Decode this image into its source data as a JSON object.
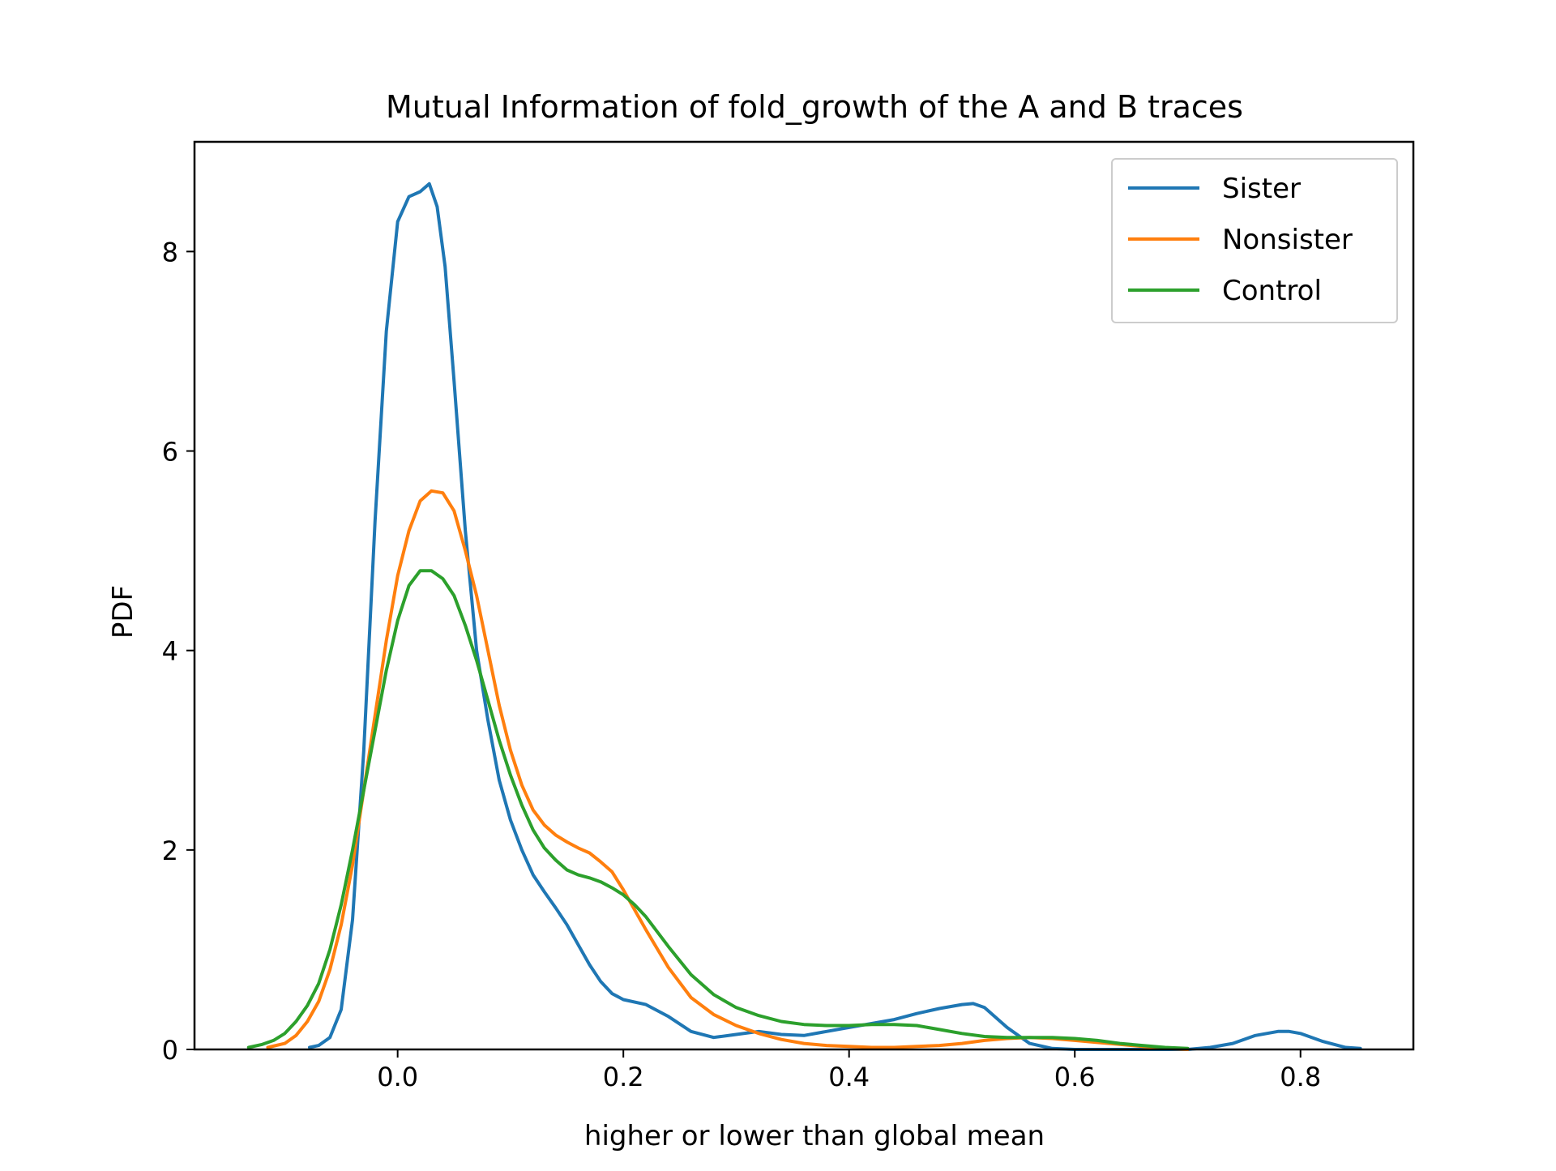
{
  "chart_data": {
    "type": "line",
    "title": "Mutual Information of fold_growth of the A and B traces",
    "xlabel": "higher or lower than global mean",
    "ylabel": "PDF",
    "xlim": [
      -0.18,
      0.9
    ],
    "ylim": [
      0,
      9.1
    ],
    "xticks": [
      0.0,
      0.2,
      0.4,
      0.6,
      0.8
    ],
    "xtick_labels": [
      "0.0",
      "0.2",
      "0.4",
      "0.6",
      "0.8"
    ],
    "yticks": [
      0,
      2,
      4,
      6,
      8
    ],
    "ytick_labels": [
      "0",
      "2",
      "4",
      "6",
      "8"
    ],
    "grid": false,
    "legend_position": "top-right",
    "series": [
      {
        "name": "Sister",
        "color": "#1f77b4",
        "x": [
          -0.078,
          -0.07,
          -0.06,
          -0.05,
          -0.04,
          -0.03,
          -0.02,
          -0.01,
          0.0,
          0.01,
          0.02,
          0.028,
          0.035,
          0.042,
          0.05,
          0.06,
          0.07,
          0.08,
          0.09,
          0.1,
          0.11,
          0.12,
          0.13,
          0.14,
          0.15,
          0.16,
          0.17,
          0.18,
          0.19,
          0.2,
          0.22,
          0.24,
          0.26,
          0.28,
          0.3,
          0.32,
          0.34,
          0.36,
          0.38,
          0.4,
          0.42,
          0.44,
          0.46,
          0.48,
          0.5,
          0.51,
          0.52,
          0.54,
          0.56,
          0.58,
          0.6,
          0.62,
          0.64,
          0.66,
          0.68,
          0.7,
          0.72,
          0.74,
          0.76,
          0.78,
          0.79,
          0.8,
          0.82,
          0.84,
          0.853
        ],
        "y": [
          0.02,
          0.04,
          0.12,
          0.4,
          1.3,
          3.0,
          5.3,
          7.2,
          8.3,
          8.55,
          8.6,
          8.68,
          8.45,
          7.85,
          6.7,
          5.2,
          4.0,
          3.3,
          2.7,
          2.3,
          2.0,
          1.75,
          1.58,
          1.42,
          1.25,
          1.05,
          0.85,
          0.68,
          0.56,
          0.5,
          0.45,
          0.33,
          0.18,
          0.12,
          0.15,
          0.18,
          0.15,
          0.14,
          0.18,
          0.22,
          0.26,
          0.3,
          0.36,
          0.41,
          0.45,
          0.46,
          0.42,
          0.22,
          0.06,
          0.01,
          0.0,
          0.0,
          0.0,
          0.0,
          0.0,
          0.0,
          0.02,
          0.06,
          0.14,
          0.18,
          0.18,
          0.16,
          0.08,
          0.02,
          0.01
        ]
      },
      {
        "name": "Nonsister",
        "color": "#ff7f0e",
        "x": [
          -0.115,
          -0.1,
          -0.09,
          -0.08,
          -0.07,
          -0.06,
          -0.05,
          -0.04,
          -0.03,
          -0.02,
          -0.01,
          0.0,
          0.01,
          0.02,
          0.03,
          0.04,
          0.05,
          0.06,
          0.07,
          0.08,
          0.09,
          0.1,
          0.11,
          0.12,
          0.13,
          0.14,
          0.15,
          0.16,
          0.17,
          0.18,
          0.19,
          0.2,
          0.22,
          0.24,
          0.26,
          0.28,
          0.3,
          0.32,
          0.34,
          0.36,
          0.38,
          0.4,
          0.42,
          0.44,
          0.46,
          0.48,
          0.5,
          0.52,
          0.54,
          0.56,
          0.58,
          0.6,
          0.62,
          0.64,
          0.66,
          0.68,
          0.7
        ],
        "y": [
          0.02,
          0.06,
          0.14,
          0.28,
          0.48,
          0.8,
          1.25,
          1.85,
          2.6,
          3.35,
          4.1,
          4.75,
          5.2,
          5.5,
          5.6,
          5.58,
          5.4,
          5.0,
          4.55,
          4.0,
          3.45,
          3.0,
          2.65,
          2.4,
          2.25,
          2.15,
          2.08,
          2.02,
          1.97,
          1.88,
          1.78,
          1.6,
          1.2,
          0.82,
          0.52,
          0.35,
          0.24,
          0.16,
          0.1,
          0.06,
          0.04,
          0.03,
          0.02,
          0.02,
          0.03,
          0.04,
          0.06,
          0.09,
          0.11,
          0.12,
          0.11,
          0.09,
          0.07,
          0.05,
          0.03,
          0.01,
          0.0
        ]
      },
      {
        "name": "Control",
        "color": "#2ca02c",
        "x": [
          -0.132,
          -0.12,
          -0.11,
          -0.1,
          -0.09,
          -0.08,
          -0.07,
          -0.06,
          -0.05,
          -0.04,
          -0.03,
          -0.02,
          -0.01,
          0.0,
          0.01,
          0.02,
          0.03,
          0.04,
          0.05,
          0.06,
          0.07,
          0.08,
          0.09,
          0.1,
          0.11,
          0.12,
          0.13,
          0.14,
          0.15,
          0.16,
          0.17,
          0.18,
          0.19,
          0.2,
          0.21,
          0.22,
          0.23,
          0.24,
          0.26,
          0.28,
          0.3,
          0.32,
          0.34,
          0.36,
          0.38,
          0.4,
          0.42,
          0.44,
          0.46,
          0.48,
          0.5,
          0.52,
          0.54,
          0.56,
          0.58,
          0.6,
          0.62,
          0.64,
          0.66,
          0.68,
          0.7
        ],
        "y": [
          0.02,
          0.05,
          0.09,
          0.16,
          0.28,
          0.44,
          0.66,
          1.0,
          1.45,
          2.0,
          2.6,
          3.2,
          3.8,
          4.3,
          4.65,
          4.8,
          4.8,
          4.72,
          4.55,
          4.25,
          3.9,
          3.5,
          3.1,
          2.75,
          2.45,
          2.2,
          2.02,
          1.9,
          1.8,
          1.75,
          1.72,
          1.68,
          1.62,
          1.55,
          1.45,
          1.33,
          1.18,
          1.03,
          0.75,
          0.55,
          0.42,
          0.34,
          0.28,
          0.25,
          0.24,
          0.24,
          0.25,
          0.25,
          0.24,
          0.2,
          0.16,
          0.13,
          0.12,
          0.12,
          0.12,
          0.11,
          0.09,
          0.06,
          0.04,
          0.02,
          0.01
        ]
      }
    ]
  }
}
